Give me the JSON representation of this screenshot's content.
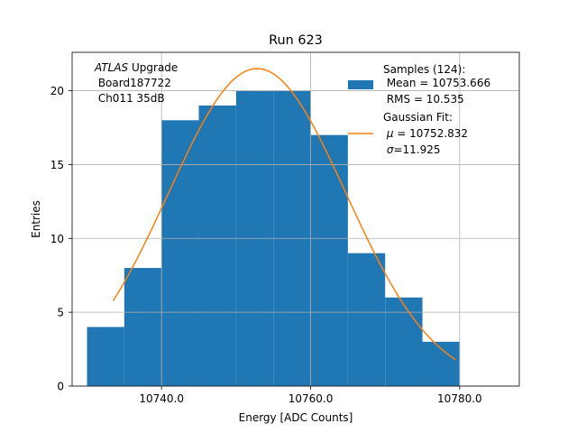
{
  "chart_data": {
    "type": "bar",
    "title": "Run 623",
    "xlabel": "Energy [ADC Counts]",
    "ylabel": "Entries",
    "xlim": [
      10728.0,
      10788.0
    ],
    "ylim": [
      0,
      22.6
    ],
    "grid": true,
    "legend_position": "top-right",
    "x_ticks": [
      10740.0,
      10760.0,
      10780.0
    ],
    "x_tick_labels": [
      "10740.0",
      "10760.0",
      "10780.0"
    ],
    "y_ticks": [
      0,
      5,
      10,
      15,
      20
    ],
    "y_tick_labels": [
      "0",
      "5",
      "10",
      "15",
      "20"
    ],
    "bin_edges": [
      10730,
      10735,
      10740,
      10745,
      10750,
      10755,
      10760,
      10765,
      10770,
      10775,
      10780
    ],
    "values": [
      4,
      8,
      18,
      19,
      20,
      20,
      17,
      9,
      6,
      3
    ],
    "fit": {
      "type": "gaussian",
      "mu": 10752.832,
      "sigma": 11.925,
      "amplitude": 21.5,
      "x_range": [
        10733.5,
        10779.5
      ]
    },
    "annotation": {
      "italic": "ATLAS",
      "lines": [
        " Upgrade",
        " Board187722",
        " Ch011 35dB"
      ]
    },
    "legend": [
      {
        "name": "histogram",
        "lines": [
          "Samples (124):",
          " Mean = 10753.666",
          " RMS = 10.535"
        ]
      },
      {
        "name": "fit",
        "lines": [
          "Gaussian Fit:"
        ],
        "mu_symbol": "μ",
        "mu_text": " = 10752.832",
        "sigma_symbol": "σ",
        "sigma_text": "=11.925"
      }
    ],
    "colors": {
      "bars": "#1f77b4",
      "fit": "#ff7f0e",
      "grid": "#b0b0b0",
      "axis": "#000000"
    }
  }
}
